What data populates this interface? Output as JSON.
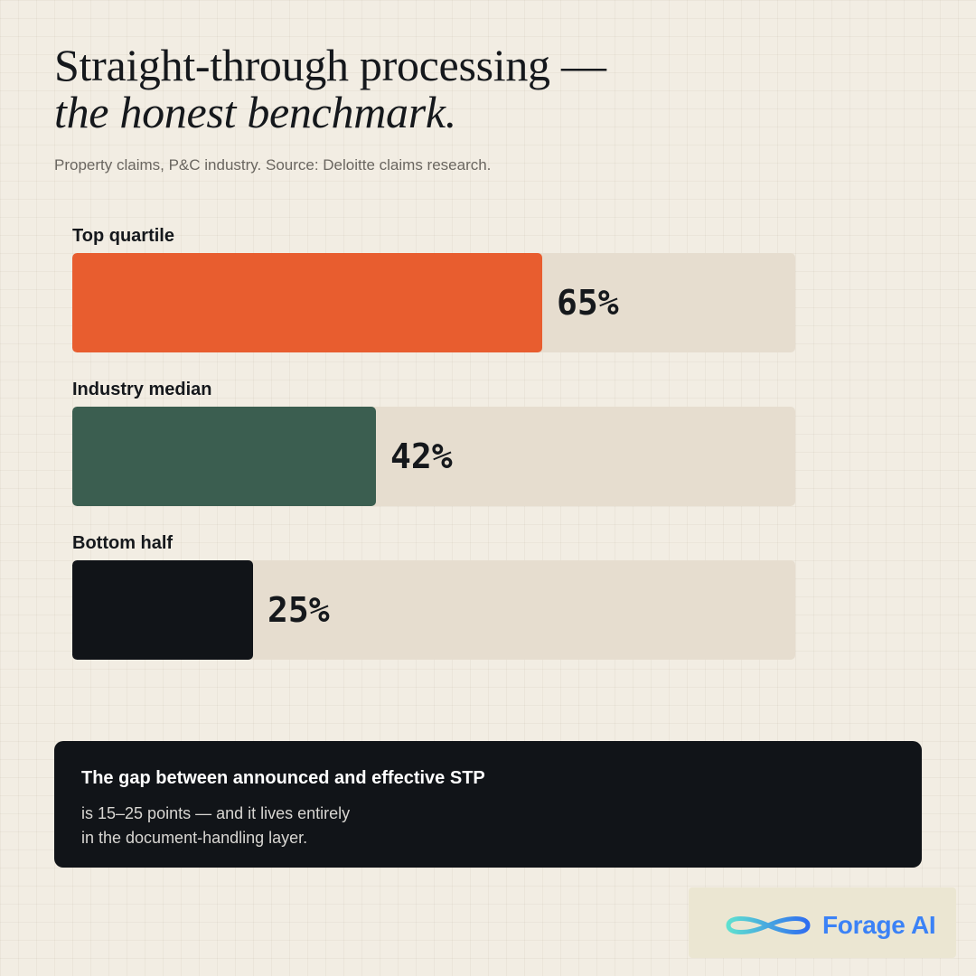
{
  "header": {
    "title_line1": "Straight-through processing —",
    "title_line2": "the honest benchmark."
  },
  "subtitle": "Property claims, P&C industry. Source: Deloitte claims research.",
  "chart_data": {
    "type": "bar",
    "orientation": "horizontal",
    "categories": [
      "Top quartile",
      "Industry median",
      "Bottom half"
    ],
    "values": [
      65,
      42,
      25
    ],
    "value_labels": [
      "65%",
      "42%",
      "25%"
    ],
    "unit": "%",
    "xlim": [
      0,
      100
    ],
    "colors": [
      "#e85d2f",
      "#3b5e50",
      "#111418"
    ],
    "track_color": "#e6ddcf",
    "grid": false,
    "legend": "none"
  },
  "callout": {
    "heading": "The gap between announced and effective STP",
    "line1": "is 15–25 points — and it lives entirely",
    "line2": "in the document-handling layer."
  },
  "brand": {
    "name": "Forage AI",
    "icon": "infinity-logo-icon",
    "color": "#3b82f6"
  }
}
